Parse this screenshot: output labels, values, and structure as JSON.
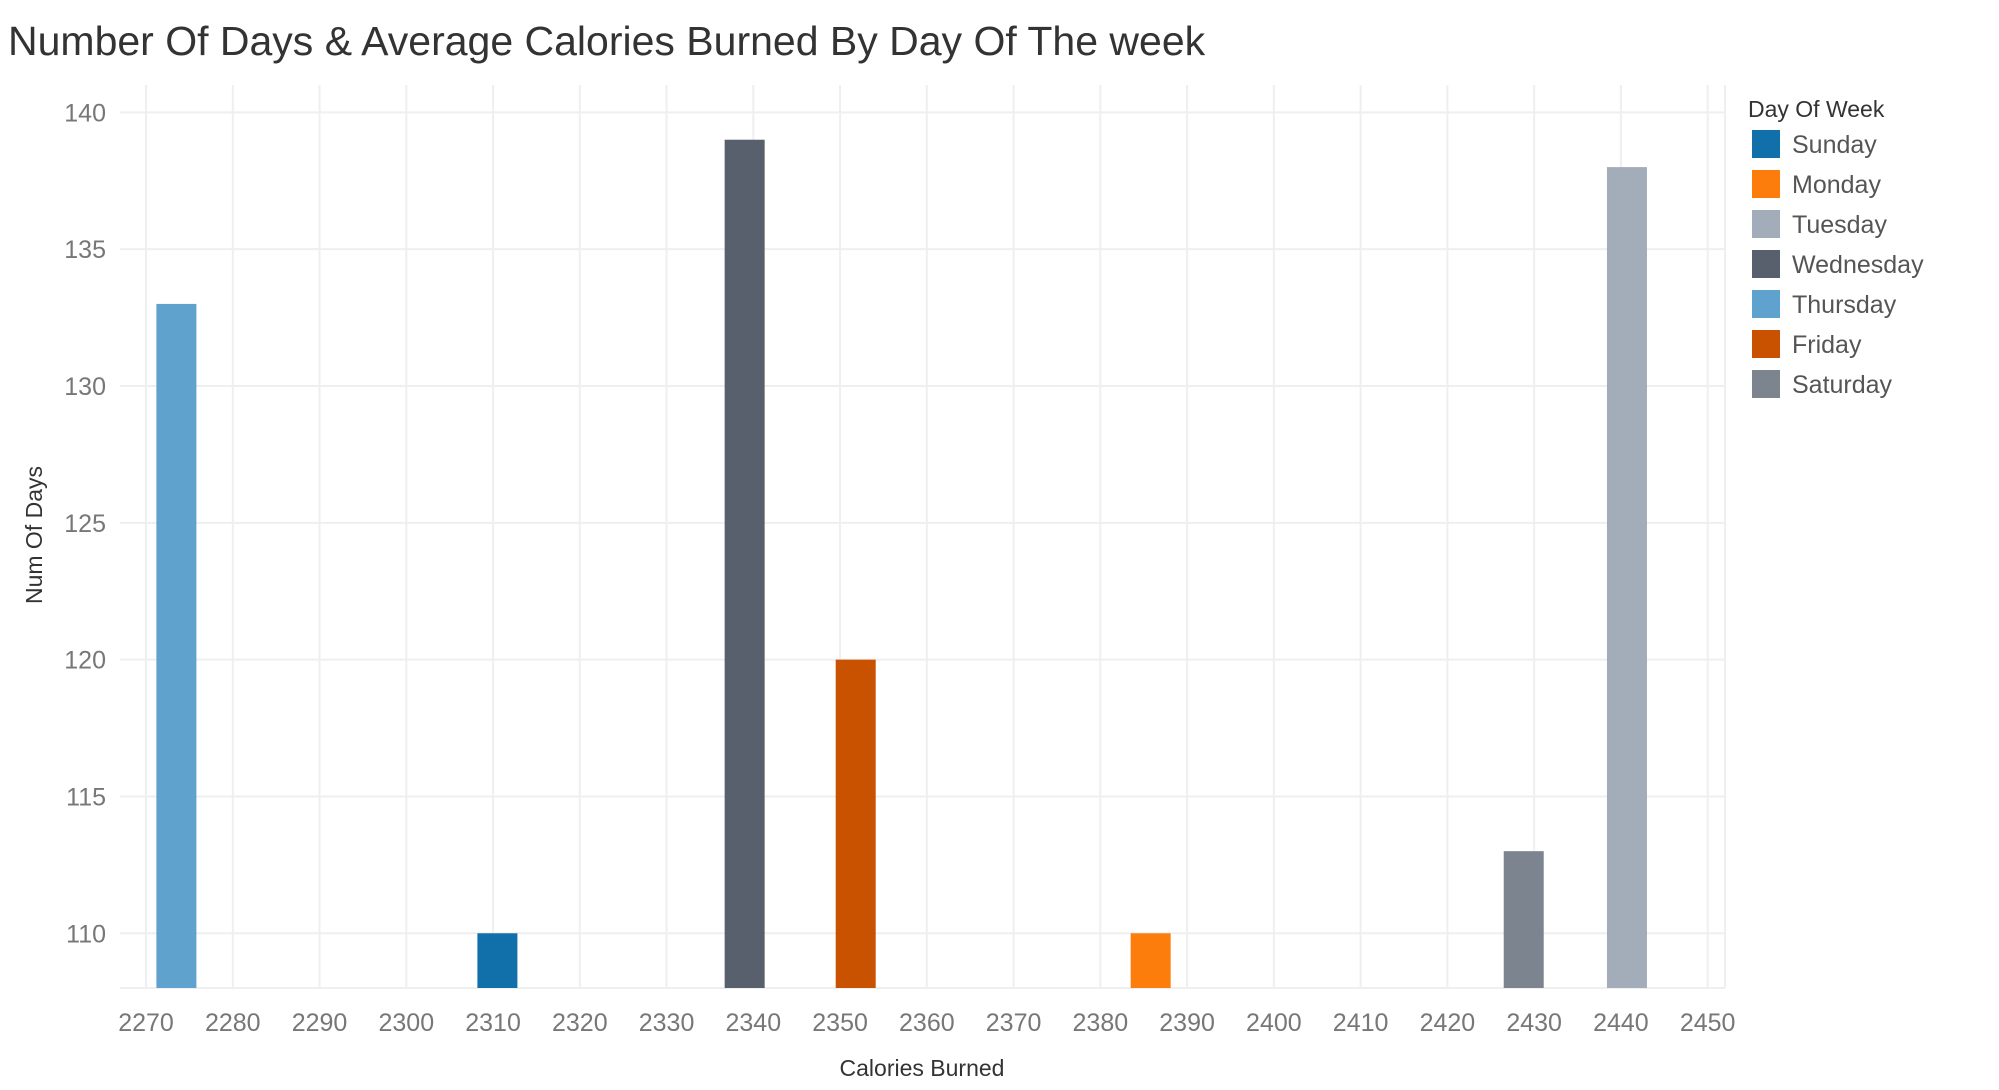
{
  "chart_data": {
    "type": "bar",
    "title": "Number Of Days & Average Calories Burned By Day Of The week",
    "xlabel": "Calories Burned",
    "ylabel": "Num Of Days",
    "x_ticks": [
      2270,
      2280,
      2290,
      2300,
      2310,
      2320,
      2330,
      2340,
      2350,
      2360,
      2370,
      2380,
      2390,
      2400,
      2410,
      2420,
      2430,
      2440,
      2450
    ],
    "y_ticks": [
      110,
      115,
      120,
      125,
      130,
      135,
      140
    ],
    "xlim": [
      2267,
      2452
    ],
    "ylim": [
      108,
      141
    ],
    "grid": true,
    "legend": {
      "title": "Day Of Week",
      "placement": "right",
      "entries": [
        "Sunday",
        "Monday",
        "Tuesday",
        "Wednesday",
        "Thursday",
        "Friday",
        "Saturday"
      ]
    },
    "colors": {
      "Sunday": "#1170aa",
      "Monday": "#fc7d0b",
      "Tuesday": "#a3acb9",
      "Wednesday": "#57606c",
      "Thursday": "#5fa2ce",
      "Friday": "#c85200",
      "Saturday": "#7b848f"
    },
    "points": [
      {
        "day": "Thursday",
        "x": 2273.5,
        "y": 133
      },
      {
        "day": "Sunday",
        "x": 2310.5,
        "y": 110
      },
      {
        "day": "Wednesday",
        "x": 2339,
        "y": 139
      },
      {
        "day": "Friday",
        "x": 2351.8,
        "y": 120
      },
      {
        "day": "Monday",
        "x": 2385.8,
        "y": 110
      },
      {
        "day": "Saturday",
        "x": 2428.8,
        "y": 113
      },
      {
        "day": "Tuesday",
        "x": 2440.7,
        "y": 138
      }
    ]
  }
}
